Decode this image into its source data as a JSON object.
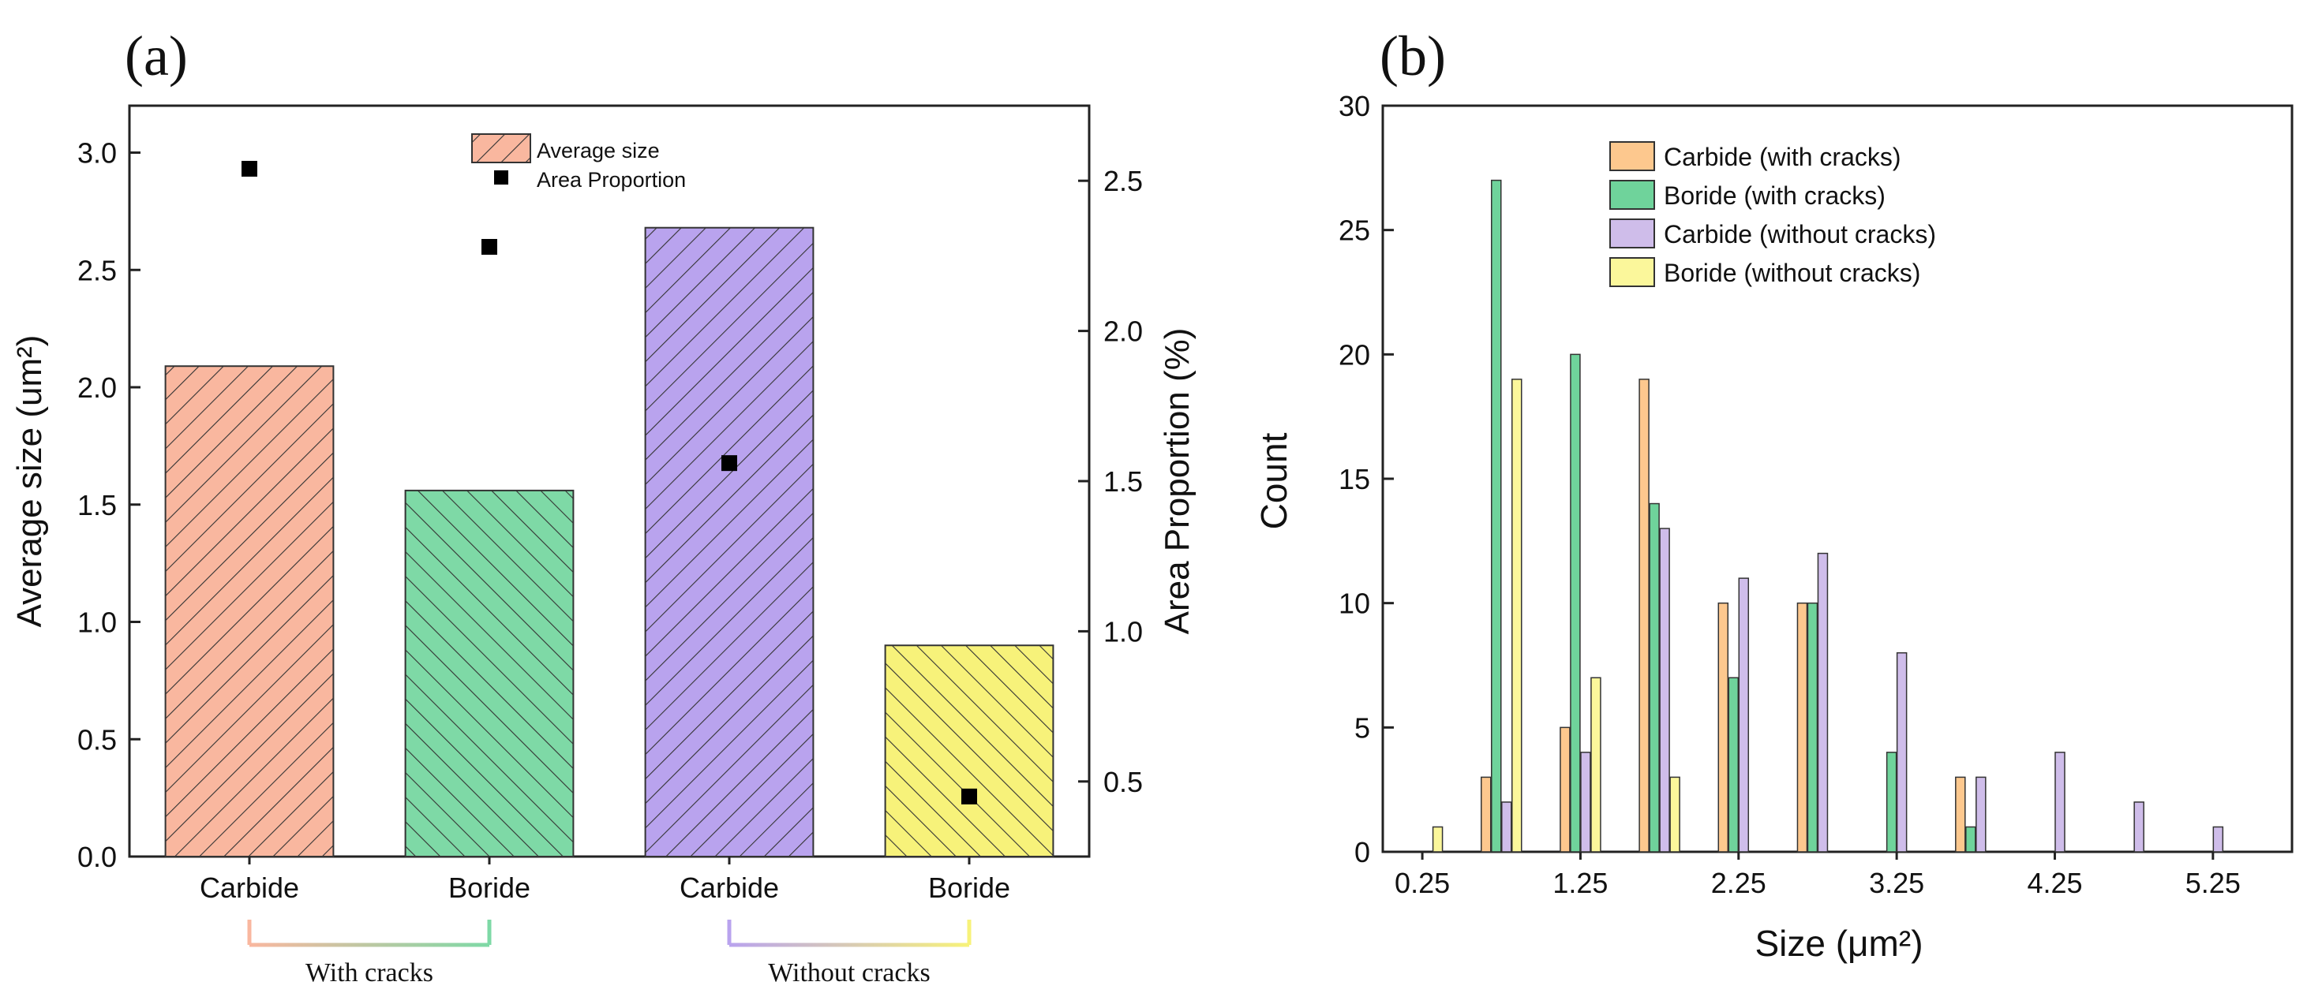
{
  "panels": {
    "a": {
      "label": "(a)"
    },
    "b": {
      "label": "(b)"
    }
  },
  "chart_data": [
    {
      "type": "bar",
      "panel": "(a)",
      "categories": [
        "Carbide",
        "Boride",
        "Carbide",
        "Boride"
      ],
      "groups": [
        {
          "label": "With cracks",
          "categories": [
            0,
            1
          ]
        },
        {
          "label": "Without cracks",
          "categories": [
            2,
            3
          ]
        }
      ],
      "series": [
        {
          "name": "Average size",
          "axis": "left",
          "values": [
            2.09,
            1.56,
            2.68,
            0.9
          ]
        },
        {
          "name": "Area Proportion",
          "axis": "right",
          "marker": "square",
          "values": [
            2.54,
            2.28,
            1.56,
            0.45
          ]
        }
      ],
      "bar_colors": [
        "#F9B79F",
        "#7ED9A6",
        "#B9A3EE",
        "#F7F27A"
      ],
      "ylabel": "Average size (um²)",
      "ylabel_right": "Area Proportion (%)",
      "ylim": [
        0,
        3.2
      ],
      "ylim_right": [
        0.25,
        2.75
      ],
      "yticks": [
        "0.0",
        "0.5",
        "1.0",
        "1.5",
        "2.0",
        "2.5",
        "3.0"
      ],
      "yticks_right": [
        "0.5",
        "1.0",
        "1.5",
        "2.0",
        "2.5"
      ],
      "legend_position": "top-center",
      "grid": false,
      "hatch": "diagonal"
    },
    {
      "type": "bar",
      "panel": "(b)",
      "x": [
        0.25,
        0.75,
        1.25,
        1.75,
        2.25,
        2.75,
        3.25,
        3.75,
        4.25,
        4.75,
        5.25
      ],
      "xticks": [
        "0.25",
        "1.25",
        "2.25",
        "3.25",
        "4.25",
        "5.25"
      ],
      "series": [
        {
          "name": "Carbide (with cracks)",
          "color": "#FDC88E",
          "values": [
            0,
            3,
            5,
            19,
            10,
            10,
            0,
            3,
            0,
            0,
            0
          ]
        },
        {
          "name": "Boride (with cracks)",
          "color": "#6FD39B",
          "values": [
            0,
            27,
            20,
            14,
            7,
            10,
            4,
            1,
            0,
            0,
            0
          ]
        },
        {
          "name": "Carbide (without cracks)",
          "color": "#CFBDEA",
          "values": [
            0,
            2,
            4,
            13,
            11,
            12,
            8,
            3,
            4,
            2,
            1
          ]
        },
        {
          "name": "Boride (without cracks)",
          "color": "#FBF79B",
          "values": [
            1,
            19,
            7,
            3,
            0,
            0,
            0,
            0,
            0,
            0,
            0
          ]
        }
      ],
      "xlabel": "Size (μm²)",
      "ylabel": "Count",
      "xlim": [
        0,
        5.75
      ],
      "ylim": [
        0,
        30
      ],
      "yticks": [
        "0",
        "5",
        "10",
        "15",
        "20",
        "25",
        "30"
      ],
      "legend_position": "top-center",
      "grid": false
    }
  ]
}
